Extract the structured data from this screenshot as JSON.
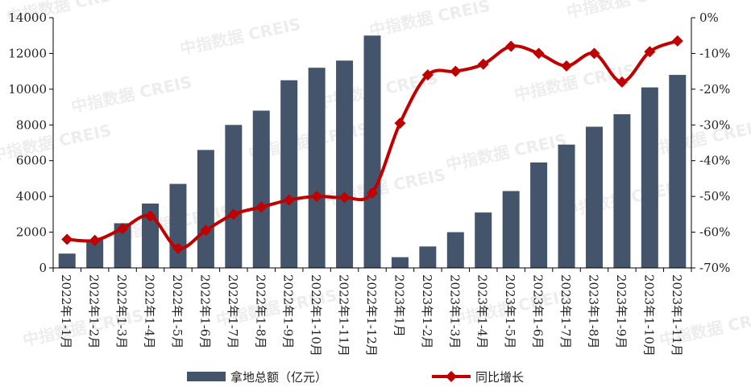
{
  "chart_data": {
    "type": "bar+line",
    "categories": [
      "2022年1-1月",
      "2022年1-2月",
      "2022年1-3月",
      "2022年1-4月",
      "2022年1-5月",
      "2022年1-6月",
      "2022年1-7月",
      "2022年1-8月",
      "2022年1-9月",
      "2022年1-10月",
      "2022年1-11月",
      "2022年1-12月",
      "2023年1月",
      "2023年1-2月",
      "2023年1-3月",
      "2023年1-4月",
      "2023年1-5月",
      "2023年1-6月",
      "2023年1-7月",
      "2023年1-8月",
      "2023年1-9月",
      "2023年1-10月",
      "2023年1-11月"
    ],
    "series": [
      {
        "name": "拿地总额（亿元）",
        "type": "bar",
        "axis": "left",
        "color": "#44546a",
        "values": [
          800,
          1600,
          2500,
          3600,
          4700,
          6600,
          8000,
          8800,
          10500,
          11200,
          11600,
          13000,
          600,
          1200,
          2000,
          3100,
          4300,
          5900,
          6900,
          7900,
          8600,
          10100,
          10800
        ]
      },
      {
        "name": "同比增长",
        "type": "line",
        "axis": "right",
        "color": "#c00000",
        "values": [
          -62.0,
          -62.3,
          -59.0,
          -55.5,
          -64.5,
          -59.5,
          -55.0,
          -53.0,
          -51.0,
          -50.0,
          -50.3,
          -49.0,
          -29.5,
          -16.0,
          -15.0,
          -13.0,
          -8.0,
          -10.0,
          -13.5,
          -10.0,
          -18.0,
          -9.5,
          -6.5
        ]
      }
    ],
    "y_left": {
      "ylim": [
        0,
        14000
      ],
      "ticks": [
        0,
        2000,
        4000,
        6000,
        8000,
        10000,
        12000,
        14000
      ]
    },
    "y_right": {
      "ylim": [
        -70,
        0
      ],
      "ticks": [
        -70,
        -60,
        -50,
        -40,
        -30,
        -20,
        -10,
        0
      ],
      "tick_labels": [
        "-70%",
        "-60%",
        "-50%",
        "-40%",
        "-30%",
        "-20%",
        "-10%",
        "0%"
      ]
    },
    "legend": {
      "placement": "bottom",
      "items": [
        {
          "label": "拿地总额（亿元）",
          "symbol": "bar",
          "color": "#44546a"
        },
        {
          "label": "同比增长",
          "symbol": "line-diamond",
          "color": "#c00000"
        }
      ]
    },
    "grid": false
  },
  "watermark_text": "中指数据 CREIS"
}
